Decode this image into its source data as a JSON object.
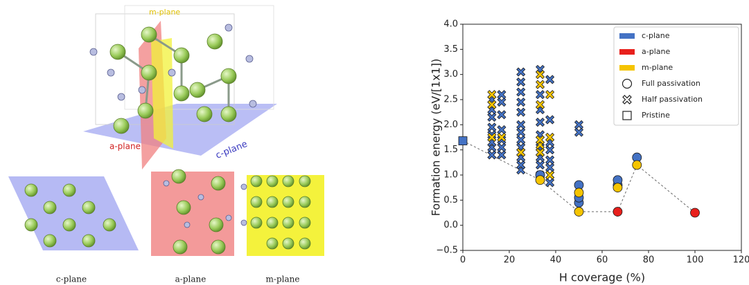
{
  "illustration": {
    "labels": {
      "m_plane": "m-plane",
      "a_plane": "a-plane",
      "c_plane": "c-plane"
    },
    "captions": [
      "c-plane",
      "a-plane",
      "m-plane"
    ]
  },
  "chart_data": {
    "type": "scatter",
    "x_label": "H coverage (%)",
    "y_label": "Formation energy  (eV/[1x1])",
    "xlim": [
      0,
      120
    ],
    "xticks": [
      0,
      20,
      40,
      60,
      80,
      100,
      120
    ],
    "ylim": [
      -0.5,
      4.0
    ],
    "yticks": [
      {
        "value": -0.5,
        "label": "−0.5"
      },
      {
        "value": 0,
        "label": "0.0"
      },
      0.5,
      {
        "value": 1,
        "label": "1.0"
      },
      1.5,
      {
        "value": 2,
        "label": "2.0"
      },
      2.5,
      {
        "value": 3,
        "label": "3.0"
      },
      3.5,
      {
        "value": 4,
        "label": "4.0"
      }
    ],
    "series": [
      {
        "name": "c-plane",
        "color": "#4472c4",
        "x": [
          0,
          12.5,
          12.5,
          12.5,
          12.5,
          12.5,
          12.5,
          12.5,
          12.5,
          16.7,
          16.7,
          16.7,
          16.7,
          16.7,
          16.7,
          16.7,
          25,
          25,
          25,
          25,
          25,
          25,
          25,
          25,
          25,
          25,
          25,
          25,
          33.3,
          33.3,
          33.3,
          33.3,
          33.3,
          33.3,
          33.3,
          33.3,
          33.3,
          37.5,
          37.5,
          37.5,
          37.5,
          37.5,
          37.5,
          37.5,
          37.5,
          50,
          50,
          33.3,
          50,
          50,
          50,
          66.7,
          66.7,
          75
        ],
        "values": [
          1.68,
          1.4,
          1.55,
          1.65,
          1.8,
          1.95,
          2.15,
          2.3,
          2.5,
          1.4,
          1.55,
          1.7,
          1.9,
          2.2,
          2.45,
          2.6,
          1.1,
          1.2,
          1.35,
          1.55,
          1.7,
          1.85,
          2.0,
          2.25,
          2.45,
          2.65,
          2.85,
          3.05,
          1.0,
          1.2,
          1.35,
          1.55,
          1.8,
          2.05,
          2.3,
          2.6,
          3.1,
          0.85,
          1.0,
          1.15,
          1.3,
          1.5,
          1.65,
          2.1,
          2.9,
          1.85,
          2.0,
          1.0,
          0.45,
          0.55,
          0.8,
          0.8,
          0.9,
          1.35
        ],
        "markers": [
          "s",
          "x",
          "x",
          "x",
          "x",
          "x",
          "x",
          "x",
          "x",
          "x",
          "x",
          "x",
          "x",
          "x",
          "x",
          "x",
          "x",
          "x",
          "x",
          "x",
          "x",
          "x",
          "x",
          "x",
          "x",
          "x",
          "x",
          "x",
          "x",
          "x",
          "x",
          "x",
          "x",
          "x",
          "x",
          "x",
          "x",
          "x",
          "x",
          "x",
          "x",
          "x",
          "x",
          "x",
          "x",
          "x",
          "x",
          "o",
          "o",
          "o",
          "o",
          "o",
          "o",
          "o"
        ]
      },
      {
        "name": "a-plane",
        "color": "#e8201c",
        "x": [
          66.7,
          100
        ],
        "values": [
          0.27,
          0.25
        ],
        "markers": [
          "o",
          "o"
        ]
      },
      {
        "name": "m-plane",
        "color": "#f5c400",
        "x": [
          12.5,
          12.5,
          12.5,
          16.7,
          25,
          33.3,
          33.3,
          33.3,
          33.3,
          33.3,
          33.3,
          37.5,
          37.5,
          37.5,
          33.3,
          50,
          50,
          66.7,
          75
        ],
        "values": [
          1.75,
          2.4,
          2.6,
          1.75,
          1.45,
          1.45,
          1.6,
          1.7,
          2.4,
          2.8,
          3.0,
          1.0,
          1.75,
          2.6,
          0.9,
          0.27,
          0.65,
          0.75,
          1.2
        ],
        "markers": [
          "x",
          "x",
          "x",
          "x",
          "x",
          "x",
          "x",
          "x",
          "x",
          "x",
          "x",
          "x",
          "x",
          "x",
          "o",
          "o",
          "o",
          "o",
          "o"
        ]
      }
    ],
    "marker_legend": [
      {
        "name": "Full passivation",
        "marker": "o"
      },
      {
        "name": "Half passivation",
        "marker": "x"
      },
      {
        "name": "Pristine",
        "marker": "s"
      }
    ],
    "lower_envelope": {
      "x": [
        0,
        33.3,
        50,
        66.7,
        75,
        100
      ],
      "values": [
        1.68,
        0.9,
        0.27,
        0.27,
        1.2,
        0.25
      ],
      "color": "#666666"
    },
    "legend": "upper right",
    "grid": false
  }
}
